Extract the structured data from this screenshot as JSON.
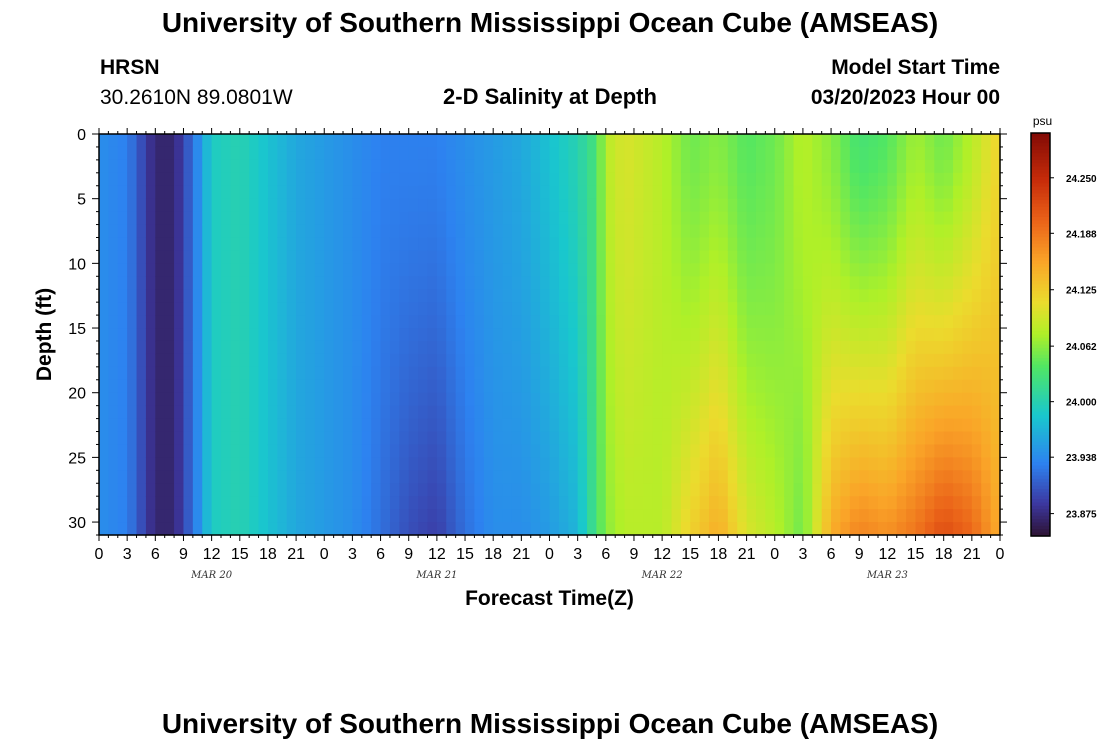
{
  "header": {
    "title": "University of Southern Mississippi Ocean Cube (AMSEAS)",
    "station": "HRSN",
    "coords": "30.2610N  89.0801W",
    "subtitle": "2-D Salinity at Depth",
    "model_start_label": "Model Start Time",
    "model_start_value": "03/20/2023 Hour 00"
  },
  "footer": {
    "title": "University of Southern Mississippi Ocean Cube (AMSEAS)"
  },
  "chart_data": {
    "type": "heatmap",
    "xlabel": "Forecast Time(Z)",
    "ylabel": "Depth (ft)",
    "units": "psu",
    "x_range_hours": [
      0,
      96
    ],
    "ylim": [
      0,
      31
    ],
    "y_inverted": true,
    "x_tick_labels": [
      "0",
      "3",
      "6",
      "9",
      "12",
      "15",
      "18",
      "21",
      "0",
      "3",
      "6",
      "9",
      "12",
      "15",
      "18",
      "21",
      "0",
      "3",
      "6",
      "9",
      "12",
      "15",
      "18",
      "21",
      "0",
      "3",
      "6",
      "9",
      "12",
      "15",
      "18",
      "21",
      "0"
    ],
    "y_ticks": [
      0,
      5,
      10,
      15,
      20,
      25,
      30
    ],
    "date_labels": [
      {
        "label": "MAR 20",
        "hour": 12
      },
      {
        "label": "MAR 21",
        "hour": 36
      },
      {
        "label": "MAR 22",
        "hour": 60
      },
      {
        "label": "MAR 23",
        "hour": 84
      }
    ],
    "colorbar": {
      "min": 23.85,
      "max": 24.3,
      "ticks": [
        24.25,
        24.188,
        24.125,
        24.062,
        24.0,
        23.938,
        23.875
      ],
      "tick_labels": [
        "24.250",
        "24.188",
        "24.125",
        "24.062",
        "24.000",
        "23.938",
        "23.875"
      ]
    },
    "depth_levels_ft": [
      0,
      31
    ],
    "time_hours": [
      0,
      3,
      6,
      8,
      10,
      12,
      15,
      18,
      21,
      24,
      27,
      30,
      33,
      36,
      39,
      42,
      45,
      48,
      51,
      53,
      54,
      56,
      60,
      63,
      66,
      69,
      72,
      75,
      78,
      81,
      84,
      87,
      90,
      93,
      96
    ],
    "salinity_surface": [
      23.94,
      23.93,
      23.87,
      23.87,
      23.92,
      23.99,
      24.0,
      23.98,
      23.96,
      23.95,
      23.94,
      23.93,
      23.93,
      23.93,
      23.94,
      23.95,
      23.96,
      23.98,
      24.0,
      24.03,
      24.08,
      24.1,
      24.08,
      24.05,
      24.06,
      24.04,
      24.05,
      24.08,
      24.06,
      24.03,
      24.04,
      24.07,
      24.05,
      24.08,
      24.12
    ],
    "salinity_bottom": [
      23.94,
      23.93,
      23.87,
      23.87,
      23.92,
      23.99,
      24.0,
      23.98,
      23.96,
      23.95,
      23.94,
      23.92,
      23.9,
      23.89,
      23.92,
      23.94,
      23.94,
      23.95,
      23.97,
      24.03,
      24.06,
      24.08,
      24.08,
      24.12,
      24.15,
      24.1,
      24.08,
      24.05,
      24.15,
      24.18,
      24.17,
      24.19,
      24.22,
      24.2,
      24.15
    ]
  }
}
